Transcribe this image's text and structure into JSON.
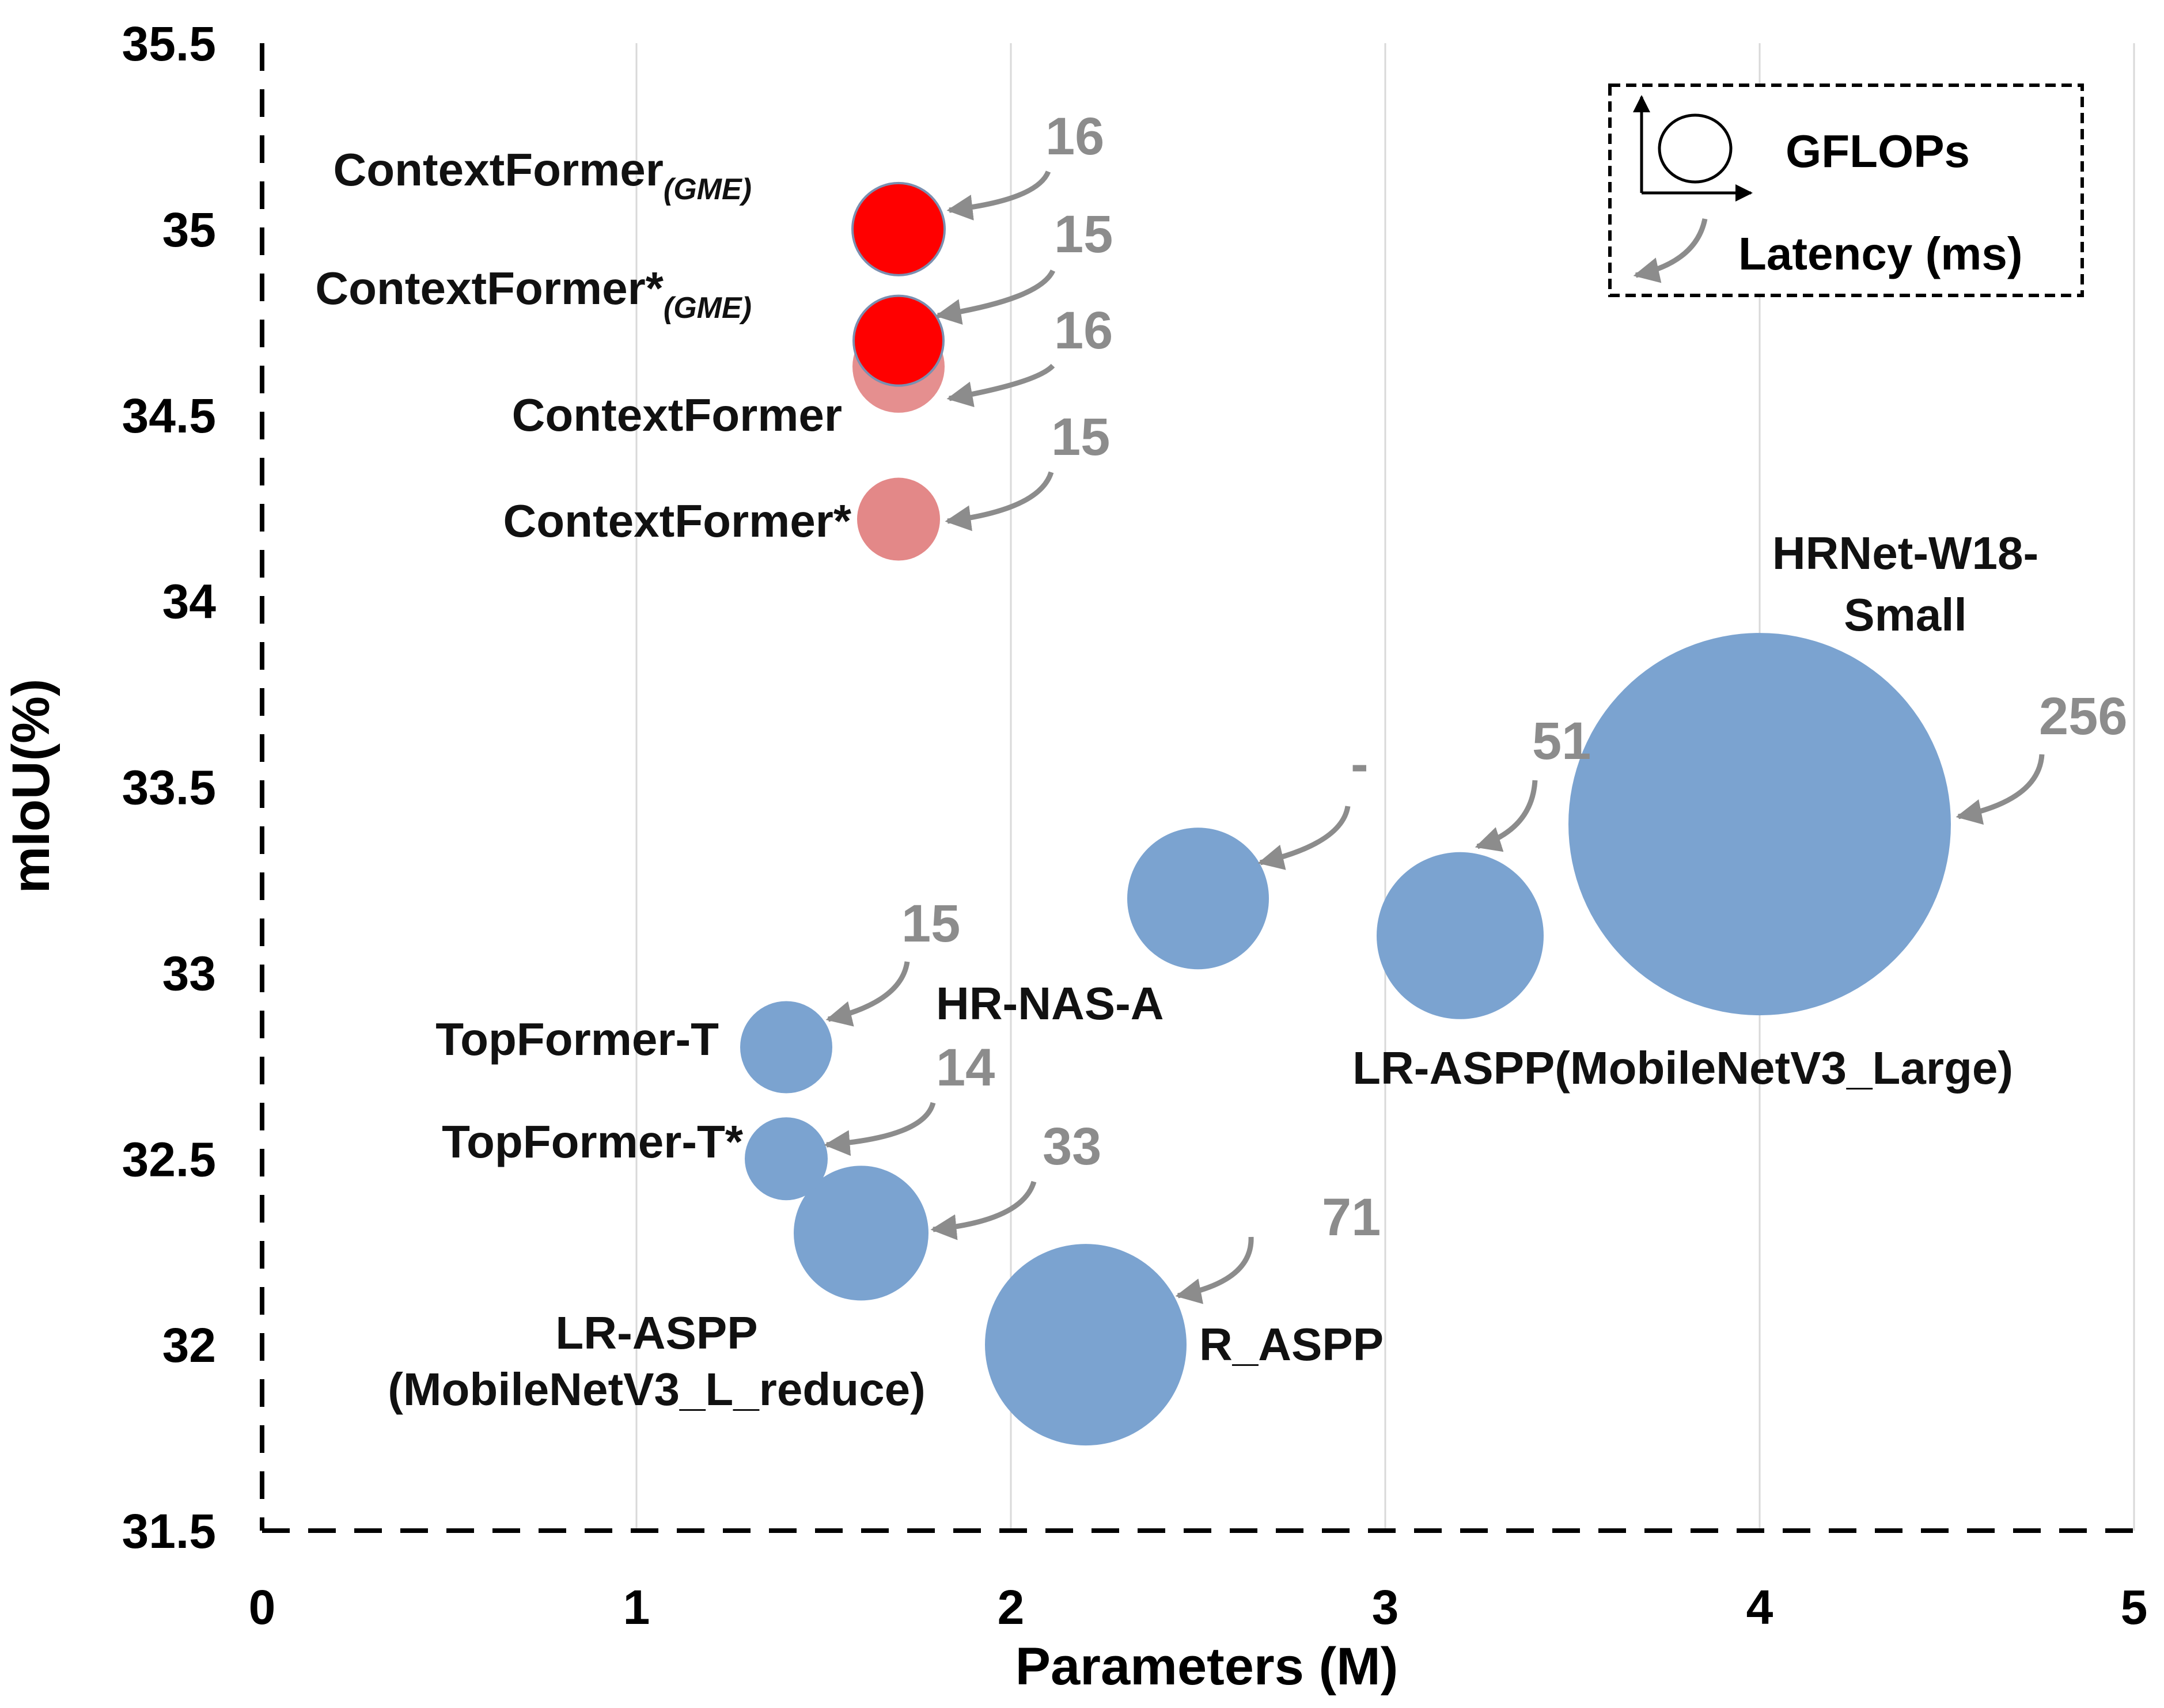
{
  "chart_data": {
    "type": "scatter",
    "variant": "bubble",
    "xlabel": "Parameters (M)",
    "ylabel": "mIoU(%)",
    "xlim": [
      0,
      5
    ],
    "ylim": [
      31.5,
      35.5
    ],
    "xticks": [
      "0",
      "1",
      "2",
      "3",
      "4",
      "5"
    ],
    "yticks": [
      "31.5",
      "32",
      "32.5",
      "33",
      "33.5",
      "34",
      "34.5",
      "35",
      "35.5"
    ],
    "grid": "vertical",
    "legend": {
      "position": "top-right",
      "size_label": "GFLOPs",
      "arrow_label": "Latency (ms)"
    },
    "colors": {
      "contextformer_gme": "#ff0000",
      "contextformer": "#e07b7b",
      "baseline": "#7ba3d0",
      "latency": "#8c8c8c"
    },
    "points": [
      {
        "name": "ContextFormer",
        "sub": "(GME)",
        "params": 1.7,
        "miou": 35.0,
        "latency": "16",
        "color_key": "contextformer_gme"
      },
      {
        "name": "ContextFormer*",
        "sub": "(GME)",
        "params": 1.7,
        "miou": 34.7,
        "latency": "15",
        "color_key": "contextformer_gme"
      },
      {
        "name": "ContextFormer",
        "sub": "",
        "params": 1.7,
        "miou": 34.63,
        "latency": "16",
        "color_key": "contextformer"
      },
      {
        "name": "ContextFormer*",
        "sub": "",
        "params": 1.7,
        "miou": 34.22,
        "latency": "15",
        "color_key": "contextformer"
      },
      {
        "name": "HRNet-W18-",
        "name2": "Small",
        "sub": "",
        "params": 4.0,
        "miou": 33.4,
        "latency": "256",
        "color_key": "baseline"
      },
      {
        "name": "LR-ASPP(MobileNetV3_Large)",
        "sub": "",
        "params": 3.2,
        "miou": 33.1,
        "latency": "51",
        "color_key": "baseline"
      },
      {
        "name": "HR-NAS-A",
        "sub": "",
        "params": 2.5,
        "miou": 33.2,
        "latency": "-",
        "color_key": "baseline"
      },
      {
        "name": "TopFormer-T",
        "sub": "",
        "params": 1.4,
        "miou": 32.8,
        "latency": "15",
        "color_key": "baseline"
      },
      {
        "name": "TopFormer-T*",
        "sub": "",
        "params": 1.4,
        "miou": 32.5,
        "latency": "14",
        "color_key": "baseline"
      },
      {
        "name": "LR-ASPP",
        "name2": "(MobileNetV3_L_reduce)",
        "sub": "",
        "params": 1.6,
        "miou": 32.3,
        "latency": "33",
        "color_key": "baseline"
      },
      {
        "name": "R_ASPP",
        "sub": "",
        "params": 2.2,
        "miou": 32.0,
        "latency": "71",
        "color_key": "baseline"
      }
    ]
  }
}
